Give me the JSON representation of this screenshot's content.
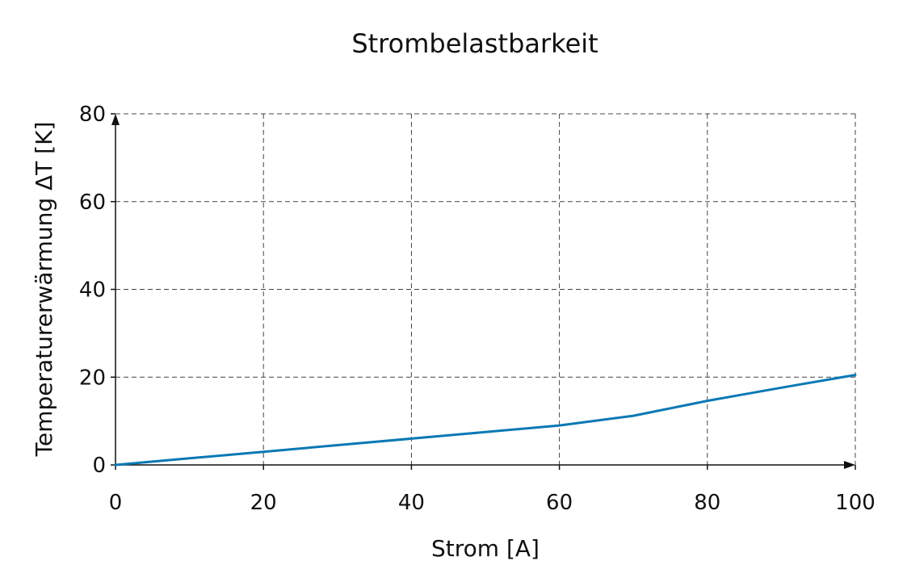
{
  "chart_data": {
    "type": "line",
    "title": "Strombelastbarkeit",
    "xlabel": "Strom [A]",
    "ylabel": "Temperaturerwärmung ΔT [K]",
    "xlim": [
      0,
      100
    ],
    "ylim": [
      0,
      80
    ],
    "xticks": [
      0,
      20,
      40,
      60,
      80,
      100
    ],
    "yticks": [
      0,
      20,
      40,
      60,
      80
    ],
    "grid": true,
    "series": [
      {
        "color": "#0a78b4",
        "x": [
          0,
          10,
          20,
          30,
          40,
          50,
          60,
          70,
          80,
          90,
          100
        ],
        "y": [
          0,
          1.5,
          3,
          4.5,
          6,
          7.5,
          9,
          11.2,
          14.6,
          17.6,
          20.5
        ]
      }
    ]
  }
}
